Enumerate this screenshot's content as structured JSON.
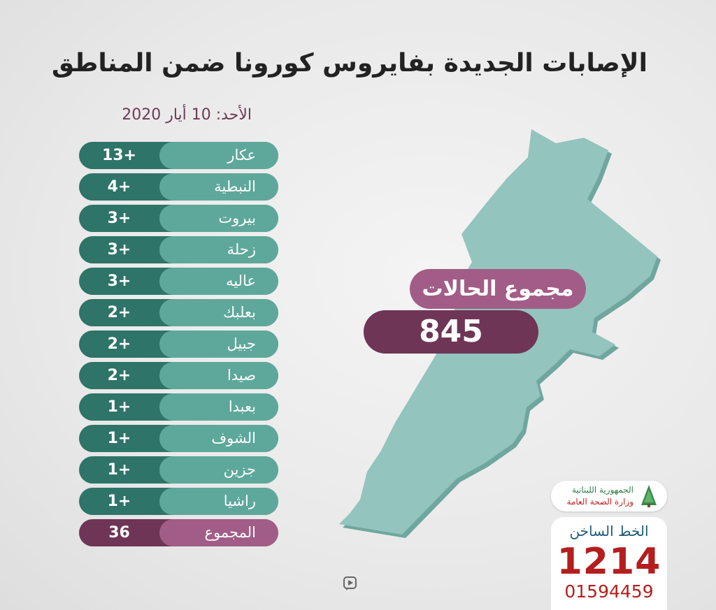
{
  "title": "الإصابات الجديدة بفايروس كورونا ضمن المناطق",
  "date": "الأحد: 10 أيار 2020",
  "regions": [
    {
      "name": "عكار",
      "count": "13+"
    },
    {
      "name": "النبطية",
      "count": "4+"
    },
    {
      "name": "بيروت",
      "count": "3+"
    },
    {
      "name": "زحلة",
      "count": "3+"
    },
    {
      "name": "عاليه",
      "count": "3+"
    },
    {
      "name": "بعلبك",
      "count": "2+"
    },
    {
      "name": "جبيل",
      "count": "2+"
    },
    {
      "name": "صيدا",
      "count": "2+"
    },
    {
      "name": "بعبدا",
      "count": "1+"
    },
    {
      "name": "الشوف",
      "count": "1+"
    },
    {
      "name": "جزين",
      "count": "1+"
    },
    {
      "name": "راشيا",
      "count": "1+"
    }
  ],
  "sum": {
    "label": "المجموع",
    "value": "36"
  },
  "total_cases": {
    "label": "مجموع الحالات",
    "value": "845"
  },
  "ministry": {
    "line1": "الجمهورية اللبنانية",
    "line2": "وزارة الصحة العامة"
  },
  "hotline": {
    "label": "الخط الساخن",
    "number": "1214",
    "alt_number": "01594459"
  },
  "icons": {
    "logo": "cedar-logo-icon",
    "video": "video-play-icon"
  },
  "colors": {
    "teal_dark": "#2e7468",
    "teal_light": "#5ea89b",
    "purple_dark": "#6e3556",
    "purple_light": "#a15d87",
    "map": "#93c4bd",
    "hotline_red": "#b41e1e"
  }
}
